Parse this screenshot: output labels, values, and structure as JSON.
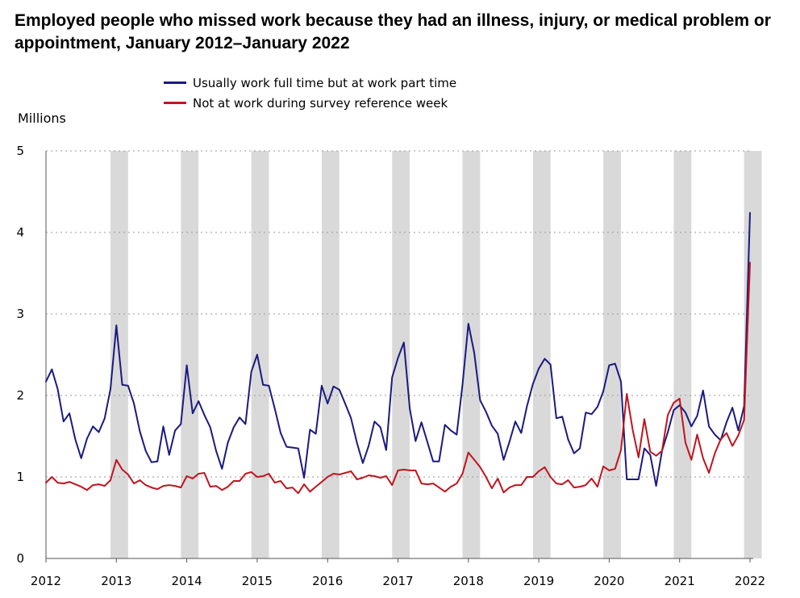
{
  "title": "Employed people who missed work because they had an illness, injury, or medical problem or appointment, January 2012–January 2022",
  "legend": [
    {
      "label": "Usually work full time but at work part time",
      "color": "#1a1a80"
    },
    {
      "label": "Not at work during survey reference week",
      "color": "#c0141e"
    }
  ],
  "chart_data": {
    "type": "line",
    "title": "Employed people who missed work because they had an illness, injury, or medical problem or appointment, January 2012–January 2022",
    "ylabel": "Millions",
    "xlabel": "",
    "ylim": [
      0,
      5
    ],
    "yticks": [
      "0",
      "1",
      "2",
      "3",
      "4",
      "5"
    ],
    "xticks": [
      "2012",
      "2013",
      "2014",
      "2015",
      "2016",
      "2017",
      "2018",
      "2019",
      "2020",
      "2021",
      "2022"
    ],
    "x_start": "2012-01",
    "x_end": "2022-01",
    "grid": "horizontal dotted",
    "legend_position": "top",
    "shaded_months": "December–February of each winter",
    "shade_color": "#d9d9d9",
    "series": [
      {
        "name": "Usually work full time but at work part time",
        "color": "#1a1a80",
        "values": [
          2.17,
          2.32,
          2.08,
          1.68,
          1.78,
          1.46,
          1.23,
          1.47,
          1.62,
          1.55,
          1.72,
          2.08,
          2.86,
          2.13,
          2.12,
          1.9,
          1.56,
          1.32,
          1.18,
          1.19,
          1.62,
          1.27,
          1.57,
          1.65,
          2.37,
          1.78,
          1.93,
          1.76,
          1.61,
          1.32,
          1.1,
          1.42,
          1.61,
          1.73,
          1.65,
          2.29,
          2.5,
          2.13,
          2.12,
          1.84,
          1.54,
          1.37,
          1.36,
          1.35,
          0.99,
          1.58,
          1.53,
          2.12,
          1.9,
          2.11,
          2.07,
          1.9,
          1.72,
          1.42,
          1.17,
          1.38,
          1.68,
          1.61,
          1.33,
          2.22,
          2.46,
          2.65,
          1.84,
          1.44,
          1.67,
          1.43,
          1.19,
          1.19,
          1.64,
          1.57,
          1.52,
          2.13,
          2.88,
          2.52,
          1.94,
          1.8,
          1.63,
          1.53,
          1.21,
          1.43,
          1.68,
          1.54,
          1.87,
          2.14,
          2.33,
          2.45,
          2.38,
          1.72,
          1.74,
          1.46,
          1.29,
          1.35,
          1.79,
          1.77,
          1.86,
          2.05,
          2.37,
          2.39,
          2.17,
          0.97,
          0.97,
          0.97,
          1.35,
          1.27,
          0.89,
          1.32,
          1.55,
          1.82,
          1.88,
          1.79,
          1.62,
          1.75,
          2.06,
          1.62,
          1.52,
          1.45,
          1.67,
          1.85,
          1.57,
          1.87,
          4.24
        ]
      },
      {
        "name": "Not at work during survey reference week",
        "color": "#c0141e",
        "values": [
          0.93,
          1.0,
          0.93,
          0.92,
          0.94,
          0.91,
          0.88,
          0.84,
          0.9,
          0.91,
          0.89,
          0.96,
          1.21,
          1.09,
          1.03,
          0.92,
          0.96,
          0.9,
          0.87,
          0.85,
          0.89,
          0.9,
          0.89,
          0.87,
          1.01,
          0.98,
          1.04,
          1.05,
          0.88,
          0.89,
          0.84,
          0.88,
          0.95,
          0.95,
          1.04,
          1.06,
          1.0,
          1.01,
          1.04,
          0.93,
          0.95,
          0.86,
          0.87,
          0.8,
          0.91,
          0.82,
          0.88,
          0.94,
          1.0,
          1.04,
          1.03,
          1.05,
          1.07,
          0.97,
          0.99,
          1.02,
          1.01,
          0.99,
          1.01,
          0.9,
          1.08,
          1.09,
          1.08,
          1.08,
          0.92,
          0.91,
          0.92,
          0.87,
          0.82,
          0.88,
          0.92,
          1.04,
          1.3,
          1.21,
          1.12,
          1.0,
          0.86,
          0.98,
          0.81,
          0.87,
          0.9,
          0.9,
          1.0,
          1.0,
          1.07,
          1.12,
          1.0,
          0.92,
          0.91,
          0.96,
          0.87,
          0.88,
          0.9,
          0.98,
          0.88,
          1.13,
          1.08,
          1.1,
          1.33,
          2.02,
          1.58,
          1.24,
          1.71,
          1.31,
          1.26,
          1.32,
          1.76,
          1.91,
          1.96,
          1.42,
          1.21,
          1.52,
          1.23,
          1.05,
          1.29,
          1.46,
          1.54,
          1.38,
          1.51,
          1.7,
          3.63
        ]
      }
    ]
  }
}
